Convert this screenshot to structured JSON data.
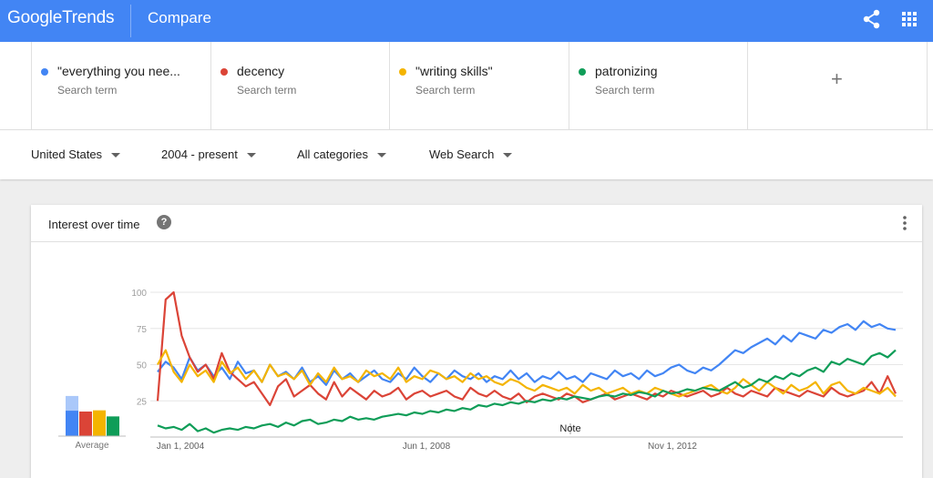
{
  "header": {
    "logo_google": "Google",
    "logo_trends": "Trends",
    "page_title": "Compare",
    "share_icon": "share-icon",
    "apps_icon": "apps-grid-icon"
  },
  "terms": [
    {
      "label": "\"everything you nee...",
      "sub": "Search term",
      "color": "#4285f4"
    },
    {
      "label": "decency",
      "sub": "Search term",
      "color": "#db4437"
    },
    {
      "label": "\"writing skills\"",
      "sub": "Search term",
      "color": "#f4b400"
    },
    {
      "label": "patronizing",
      "sub": "Search term",
      "color": "#0f9d58"
    }
  ],
  "add_term_label": "+",
  "filters": {
    "region": "United States",
    "period": "2004 - present",
    "category": "All categories",
    "search_type": "Web Search"
  },
  "card": {
    "title": "Interest over time",
    "help_label": "?",
    "more_icon": "more-vert-icon"
  },
  "chart_data": {
    "type": "line",
    "x_tick_labels": [
      "Jan 1, 2004",
      "Jun 1, 2008",
      "Nov 1, 2012"
    ],
    "y_tick_labels": [
      "25",
      "50",
      "75",
      "100"
    ],
    "ylim": [
      0,
      100
    ],
    "note_label": "Note",
    "averages_label": "Average",
    "averages": [
      49,
      30,
      32,
      24
    ],
    "averages_partial": [
      31,
      30,
      31,
      24
    ],
    "grid": true,
    "series": [
      {
        "color": "#4285f4",
        "values": [
          45,
          52,
          48,
          40,
          55,
          46,
          50,
          42,
          48,
          40,
          52,
          44,
          46,
          38,
          50,
          42,
          45,
          40,
          48,
          38,
          42,
          36,
          46,
          40,
          44,
          38,
          42,
          46,
          40,
          38,
          44,
          40,
          48,
          42,
          38,
          44,
          40,
          46,
          42,
          40,
          44,
          38,
          42,
          40,
          46,
          40,
          44,
          38,
          42,
          40,
          45,
          40,
          42,
          38,
          44,
          42,
          40,
          46,
          42,
          44,
          40,
          46,
          42,
          44,
          48,
          50,
          46,
          44,
          48,
          46,
          50,
          55,
          60,
          58,
          62,
          65,
          68,
          64,
          70,
          66,
          72,
          70,
          68,
          74,
          72,
          76,
          78,
          74,
          80,
          76,
          78,
          75,
          74
        ]
      },
      {
        "color": "#db4437",
        "values": [
          25,
          95,
          100,
          70,
          55,
          45,
          50,
          40,
          58,
          45,
          40,
          35,
          38,
          30,
          22,
          35,
          40,
          28,
          32,
          36,
          30,
          26,
          38,
          28,
          34,
          30,
          26,
          32,
          28,
          30,
          34,
          26,
          30,
          32,
          28,
          30,
          32,
          28,
          26,
          34,
          30,
          28,
          32,
          28,
          26,
          30,
          24,
          28,
          30,
          28,
          26,
          30,
          28,
          24,
          26,
          28,
          30,
          26,
          28,
          30,
          28,
          26,
          30,
          28,
          32,
          30,
          28,
          30,
          32,
          28,
          30,
          34,
          30,
          28,
          32,
          30,
          28,
          34,
          32,
          30,
          28,
          32,
          30,
          28,
          34,
          30,
          28,
          30,
          32,
          38,
          30,
          42,
          30
        ]
      },
      {
        "color": "#f4b400",
        "values": [
          50,
          60,
          45,
          38,
          50,
          42,
          46,
          38,
          52,
          44,
          48,
          40,
          46,
          38,
          50,
          42,
          44,
          40,
          46,
          36,
          44,
          38,
          48,
          40,
          42,
          38,
          46,
          42,
          44,
          40,
          48,
          38,
          42,
          40,
          46,
          44,
          40,
          42,
          38,
          44,
          40,
          42,
          38,
          36,
          40,
          38,
          34,
          32,
          36,
          34,
          32,
          34,
          30,
          36,
          32,
          34,
          30,
          32,
          34,
          30,
          32,
          30,
          34,
          32,
          30,
          28,
          30,
          32,
          34,
          36,
          32,
          30,
          34,
          40,
          36,
          32,
          38,
          34,
          30,
          36,
          32,
          34,
          38,
          30,
          36,
          38,
          32,
          30,
          34,
          32,
          30,
          34,
          28
        ]
      },
      {
        "color": "#0f9d58",
        "values": [
          8,
          6,
          7,
          5,
          9,
          4,
          6,
          3,
          5,
          6,
          5,
          7,
          6,
          8,
          9,
          7,
          10,
          8,
          11,
          12,
          9,
          10,
          12,
          11,
          14,
          12,
          13,
          12,
          14,
          15,
          16,
          15,
          17,
          16,
          18,
          17,
          19,
          18,
          20,
          19,
          22,
          21,
          23,
          22,
          24,
          23,
          25,
          24,
          26,
          25,
          27,
          26,
          28,
          27,
          26,
          28,
          29,
          28,
          30,
          29,
          31,
          30,
          28,
          32,
          30,
          31,
          33,
          32,
          34,
          33,
          32,
          35,
          38,
          34,
          36,
          40,
          38,
          42,
          40,
          44,
          42,
          46,
          48,
          45,
          52,
          50,
          54,
          52,
          50,
          56,
          58,
          55,
          60
        ]
      }
    ]
  }
}
